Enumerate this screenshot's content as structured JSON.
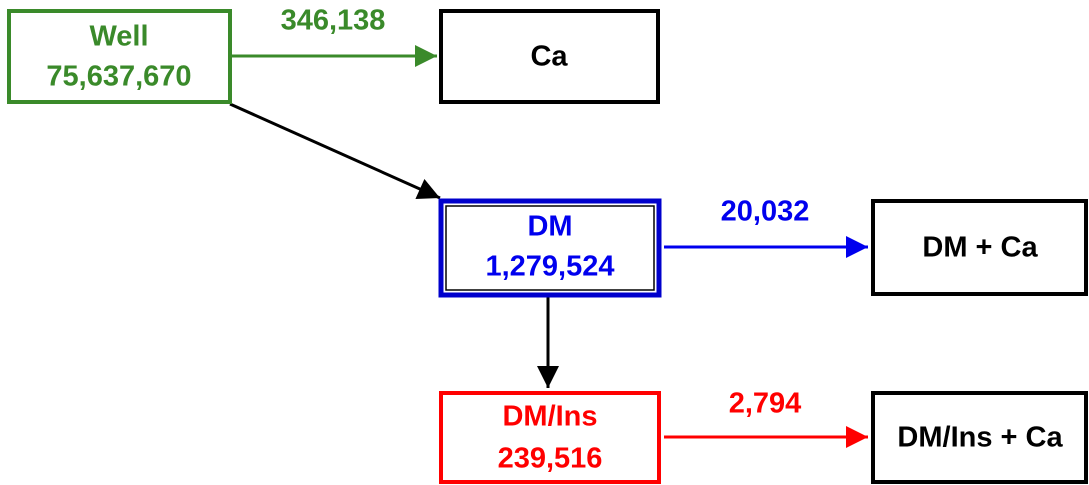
{
  "nodes": [
    {
      "label": "Well",
      "value": "75,637,670"
    },
    {
      "label": "Ca"
    },
    {
      "label": "DM",
      "value": "1,279,524"
    },
    {
      "label": "DM + Ca"
    },
    {
      "label": "DM/Ins",
      "value": "239,516"
    },
    {
      "label": "DM/Ins + Ca"
    }
  ],
  "edges": [
    {
      "label": "346,138"
    },
    {
      "label": "20,032"
    },
    {
      "label": "2,794"
    }
  ]
}
